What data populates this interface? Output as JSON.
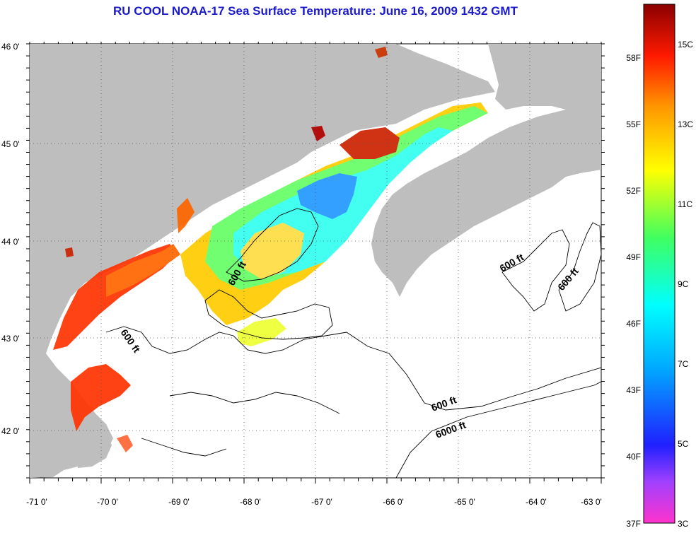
{
  "title": "RU COOL  NOAA-17  Sea Surface Temperature:  June 16, 2009 1432 GMT",
  "map": {
    "lon_ticks": [
      "-71 0'",
      "-70 0'",
      "-69 0'",
      "-68 0'",
      "-67 0'",
      "-66 0'",
      "-65 0'",
      "-64 0'",
      "-63 0'"
    ],
    "lat_ticks": [
      "46 0'",
      "45 0'",
      "44 0'",
      "43 0'",
      "42 0'"
    ],
    "contour_labels": [
      "600 ft",
      "600 ft",
      "600 ft",
      "600 ft",
      "600 ft",
      "6000 ft"
    ],
    "land_color": "#bebebe",
    "ocean_color": "#ffffff"
  },
  "colorbar": {
    "fahrenheit": [
      "58F",
      "55F",
      "52F",
      "49F",
      "46F",
      "43F",
      "40F",
      "37F"
    ],
    "celsius": [
      "15C",
      "13C",
      "11C",
      "9C",
      "7C",
      "5C",
      "3C"
    ],
    "min_c": 3,
    "max_c": 16
  }
}
